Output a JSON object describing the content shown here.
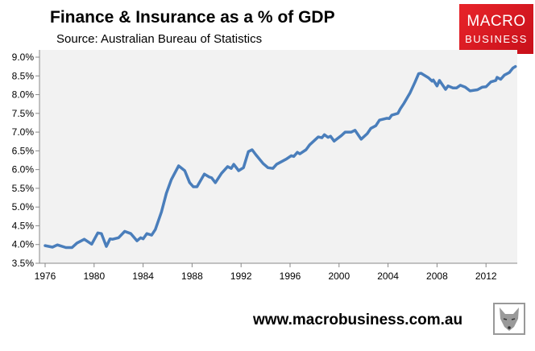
{
  "header": {
    "title": "Finance & Insurance as a % of GDP",
    "subtitle": "Source: Australian Bureau of Statistics"
  },
  "logo": {
    "line1": "MACRO",
    "line2": "BUSINESS",
    "color": "#d91a22"
  },
  "footer": {
    "url": "www.macrobusiness.com.au",
    "badge_icon": "fox-icon"
  },
  "chart_data": {
    "type": "line",
    "title": "Finance & Insurance as a % of GDP",
    "xlabel": "",
    "ylabel": "",
    "ylim": [
      3.5,
      9.0
    ],
    "yticks": [
      "3.5%",
      "4.0%",
      "4.5%",
      "5.0%",
      "5.5%",
      "6.0%",
      "6.5%",
      "7.0%",
      "7.5%",
      "8.0%",
      "8.5%",
      "9.0%"
    ],
    "xticks": [
      "1976",
      "1980",
      "1984",
      "1988",
      "1992",
      "1996",
      "2000",
      "2004",
      "2008",
      "2012"
    ],
    "grid": false,
    "line_color": "#4a7ebb",
    "background": "#f2f2f2",
    "series": [
      {
        "x": [
          1976.0,
          1976.6,
          1977.0,
          1977.7,
          1978.2,
          1978.6,
          1979.2,
          1979.8,
          1980.3,
          1980.6,
          1981.0,
          1981.3,
          1981.5,
          1982.0,
          1982.5,
          1983.0,
          1983.5,
          1983.8,
          1984.0,
          1984.3,
          1984.7,
          1985.0,
          1985.5,
          1985.9,
          1986.3,
          1986.9,
          1987.4,
          1987.8,
          1988.1,
          1988.4,
          1989.0,
          1989.4,
          1989.6,
          1989.9,
          1990.4,
          1990.9,
          1991.2,
          1991.4,
          1991.8,
          1992.2,
          1992.6,
          1992.9,
          1993.2,
          1993.8,
          1994.2,
          1994.6,
          1994.9,
          1995.7,
          1996.1,
          1996.3,
          1996.6,
          1996.8,
          1997.3,
          1997.6,
          1998.3,
          1998.6,
          1998.8,
          1999.1,
          1999.3,
          1999.6,
          1999.8,
          2000.2,
          2000.5,
          2001.0,
          2001.3,
          2001.8,
          2002.3,
          2002.6,
          2003.0,
          2003.3,
          2003.9,
          2004.1,
          2004.3,
          2004.8,
          2005.0,
          2005.3,
          2005.8,
          2006.2,
          2006.5,
          2006.7,
          2007.3,
          2007.6,
          2007.7,
          2008.0,
          2008.2,
          2008.7,
          2008.9,
          2009.3,
          2009.6,
          2009.9,
          2010.3,
          2010.7,
          2011.3,
          2011.7,
          2012.0,
          2012.4,
          2012.8,
          2012.9,
          2013.2,
          2013.5,
          2013.9,
          2014.2,
          2014.4
        ],
        "y": [
          3.97,
          3.93,
          3.99,
          3.92,
          3.92,
          4.04,
          4.14,
          4.01,
          4.31,
          4.29,
          3.95,
          4.15,
          4.14,
          4.18,
          4.35,
          4.29,
          4.1,
          4.18,
          4.15,
          4.29,
          4.25,
          4.4,
          4.87,
          5.37,
          5.73,
          6.1,
          5.97,
          5.65,
          5.54,
          5.54,
          5.88,
          5.8,
          5.78,
          5.65,
          5.9,
          6.08,
          6.03,
          6.14,
          5.97,
          6.05,
          6.48,
          6.53,
          6.4,
          6.16,
          6.05,
          6.03,
          6.14,
          6.28,
          6.37,
          6.35,
          6.46,
          6.42,
          6.53,
          6.66,
          6.87,
          6.85,
          6.93,
          6.86,
          6.89,
          6.76,
          6.81,
          6.91,
          7.0,
          7.0,
          7.05,
          6.81,
          6.96,
          7.1,
          7.17,
          7.32,
          7.37,
          7.36,
          7.45,
          7.5,
          7.62,
          7.77,
          8.05,
          8.33,
          8.56,
          8.57,
          8.45,
          8.36,
          8.39,
          8.23,
          8.38,
          8.14,
          8.23,
          8.18,
          8.18,
          8.25,
          8.2,
          8.1,
          8.13,
          8.2,
          8.21,
          8.34,
          8.38,
          8.46,
          8.41,
          8.52,
          8.59,
          8.71,
          8.75
        ]
      }
    ]
  }
}
